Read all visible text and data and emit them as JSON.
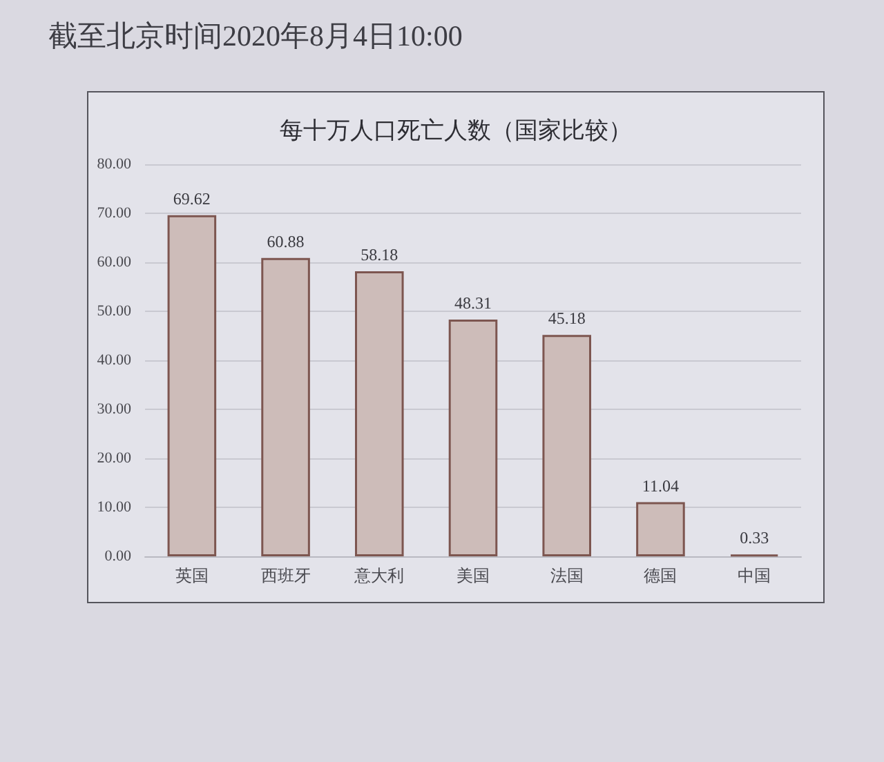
{
  "chart_data": {
    "type": "bar",
    "title": "每十万人口死亡人数（国家比较）",
    "annotations": [
      "截至北京时间2020年8月4日10:00"
    ],
    "categories": [
      "英国",
      "西班牙",
      "意大利",
      "美国",
      "法国",
      "德国",
      "中国"
    ],
    "values": [
      69.62,
      60.88,
      58.18,
      48.31,
      45.18,
      11.04,
      0.33
    ],
    "colors": [
      "#cdbcb9",
      "#cdbcb9",
      "#cdbcb9",
      "#cdbcb9",
      "#cdbcb9",
      "#cdbcb9",
      "#7d5650"
    ],
    "ylim": [
      0,
      80
    ],
    "yticks": [
      {
        "value": 0,
        "label": "0.00"
      },
      {
        "value": 10,
        "label": "10.00"
      },
      {
        "value": 20,
        "label": "20.00"
      },
      {
        "value": 30,
        "label": "30.00"
      },
      {
        "value": 40,
        "label": "40.00"
      },
      {
        "value": 50,
        "label": "50.00"
      },
      {
        "value": 60,
        "label": "60.00"
      },
      {
        "value": 70,
        "label": "70.00"
      },
      {
        "value": 80,
        "label": "80.00"
      }
    ],
    "grid": "y",
    "data_labels": true
  }
}
